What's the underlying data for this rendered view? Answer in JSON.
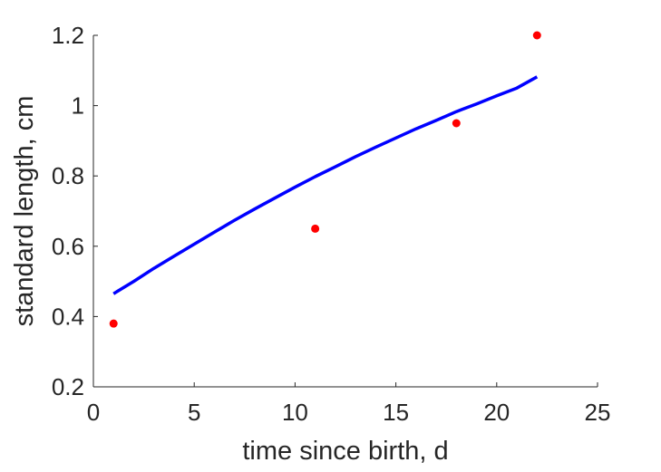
{
  "chart_data": {
    "type": "scatter",
    "title": "",
    "xlabel": "time since birth, d",
    "ylabel": "standard length, cm",
    "xlim": [
      0,
      25
    ],
    "ylim": [
      0.2,
      1.2
    ],
    "xticks": [
      0,
      5,
      10,
      15,
      20,
      25
    ],
    "xtick_labels": [
      "0",
      "5",
      "10",
      "15",
      "20",
      "25"
    ],
    "yticks": [
      0.2,
      0.4,
      0.6,
      0.8,
      1.0,
      1.2
    ],
    "ytick_labels": [
      "0.2",
      "0.4",
      "0.6",
      "0.8",
      "1",
      "1.2"
    ],
    "grid": false,
    "series": [
      {
        "kind": "scatter",
        "color": "#ff0000",
        "x": [
          1,
          11,
          18,
          22
        ],
        "y": [
          0.38,
          0.65,
          0.95,
          1.2
        ]
      },
      {
        "kind": "line",
        "color": "#0000ff",
        "x": [
          1,
          2,
          3,
          4,
          5,
          6,
          7,
          8,
          9,
          10,
          11,
          12,
          13,
          14,
          15,
          16,
          17,
          18,
          19,
          20,
          21,
          22
        ],
        "y": [
          0.465,
          0.5,
          0.537,
          0.572,
          0.606,
          0.64,
          0.674,
          0.706,
          0.737,
          0.768,
          0.798,
          0.826,
          0.855,
          0.882,
          0.908,
          0.934,
          0.958,
          0.983,
          1.005,
          1.028,
          1.05,
          1.082
        ]
      }
    ]
  }
}
